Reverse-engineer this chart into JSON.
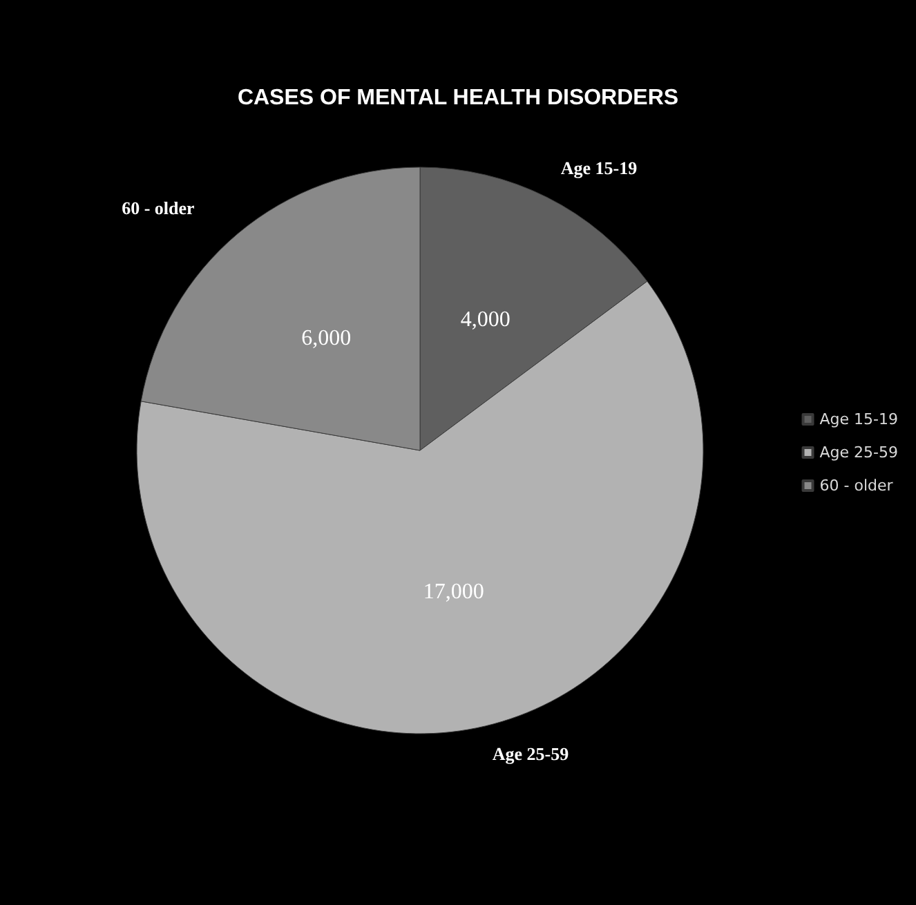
{
  "chart_data": {
    "type": "pie",
    "title": "CASES OF MENTAL HEALTH DISORDERS",
    "categories": [
      "Age 15-19",
      "Age 25-59",
      "60 - older"
    ],
    "values": [
      4000,
      17000,
      6000
    ],
    "colors": [
      "#5f5f5f",
      "#b2b2b2",
      "#898989"
    ],
    "value_labels": [
      "4,000",
      "17,000",
      "6,000"
    ],
    "legend": "right"
  }
}
